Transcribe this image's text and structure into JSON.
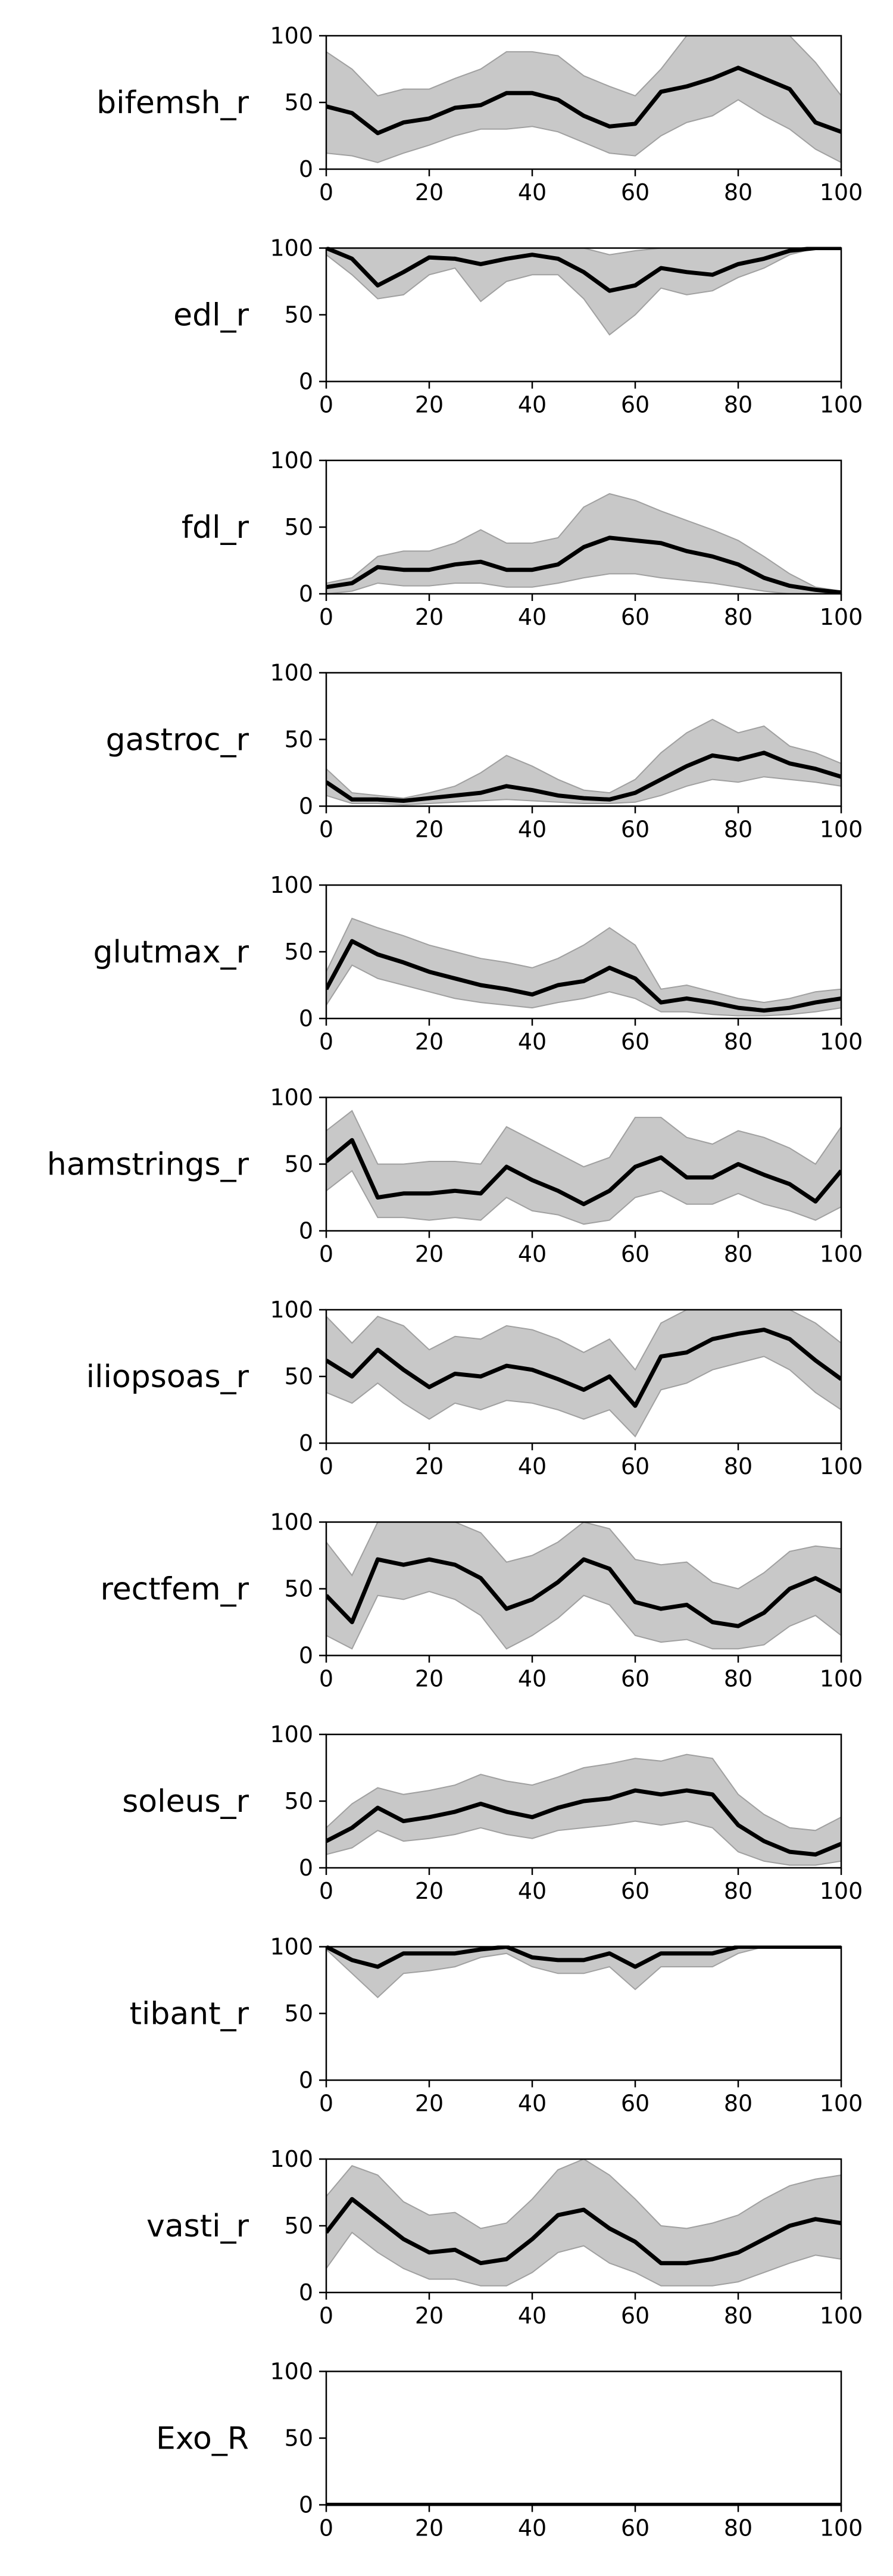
{
  "figure": {
    "x_ticks": [
      0,
      20,
      40,
      60,
      80,
      100
    ],
    "y_ticks": [
      0,
      50,
      100
    ]
  },
  "style": {
    "line_color": "#000000",
    "band_color": "#c8c8c8",
    "band_edge_color": "#a0a0a0",
    "axes_color": "#000000"
  },
  "chart_data": [
    {
      "type": "line",
      "label": "bifemsh_r",
      "xlim": [
        0,
        100
      ],
      "ylim": [
        0,
        100
      ],
      "x": [
        0,
        5,
        10,
        15,
        20,
        25,
        30,
        35,
        40,
        45,
        50,
        55,
        60,
        65,
        70,
        75,
        80,
        85,
        90,
        95,
        100
      ],
      "series": [
        {
          "values": [
            47,
            42,
            27,
            35,
            38,
            46,
            48,
            57,
            57,
            52,
            40,
            32,
            34,
            58,
            62,
            68,
            76,
            68,
            60,
            35,
            28
          ]
        },
        {
          "values": [
            88,
            75,
            55,
            60,
            60,
            68,
            75,
            88,
            88,
            85,
            70,
            62,
            55,
            75,
            100,
            100,
            100,
            100,
            100,
            80,
            55
          ]
        },
        {
          "values": [
            12,
            10,
            5,
            12,
            18,
            25,
            30,
            30,
            32,
            28,
            20,
            12,
            10,
            25,
            35,
            40,
            52,
            40,
            30,
            15,
            5
          ]
        }
      ]
    },
    {
      "type": "line",
      "label": "edl_r",
      "xlim": [
        0,
        100
      ],
      "ylim": [
        0,
        100
      ],
      "x": [
        0,
        5,
        10,
        15,
        20,
        25,
        30,
        35,
        40,
        45,
        50,
        55,
        60,
        65,
        70,
        75,
        80,
        85,
        90,
        95,
        100
      ],
      "series": [
        {
          "values": [
            100,
            92,
            72,
            82,
            93,
            92,
            88,
            92,
            95,
            92,
            82,
            68,
            72,
            85,
            82,
            80,
            88,
            92,
            98,
            100,
            100
          ]
        },
        {
          "values": [
            100,
            100,
            100,
            100,
            100,
            100,
            100,
            100,
            100,
            100,
            100,
            95,
            98,
            100,
            100,
            100,
            100,
            100,
            100,
            100,
            100
          ]
        },
        {
          "values": [
            95,
            80,
            62,
            65,
            80,
            85,
            60,
            75,
            80,
            80,
            62,
            35,
            50,
            70,
            65,
            68,
            78,
            85,
            95,
            100,
            100
          ]
        }
      ]
    },
    {
      "type": "line",
      "label": "fdl_r",
      "xlim": [
        0,
        100
      ],
      "ylim": [
        0,
        100
      ],
      "x": [
        0,
        5,
        10,
        15,
        20,
        25,
        30,
        35,
        40,
        45,
        50,
        55,
        60,
        65,
        70,
        75,
        80,
        85,
        90,
        95,
        100
      ],
      "series": [
        {
          "values": [
            5,
            8,
            20,
            18,
            18,
            22,
            24,
            18,
            18,
            22,
            35,
            42,
            40,
            38,
            32,
            28,
            22,
            12,
            6,
            3,
            1
          ]
        },
        {
          "values": [
            8,
            12,
            28,
            32,
            32,
            38,
            48,
            38,
            38,
            42,
            65,
            75,
            70,
            62,
            55,
            48,
            40,
            28,
            15,
            5,
            2
          ]
        },
        {
          "values": [
            0,
            2,
            8,
            6,
            6,
            8,
            8,
            5,
            5,
            8,
            12,
            15,
            15,
            12,
            10,
            8,
            5,
            2,
            0,
            0,
            0
          ]
        }
      ]
    },
    {
      "type": "line",
      "label": "gastroc_r",
      "xlim": [
        0,
        100
      ],
      "ylim": [
        0,
        100
      ],
      "x": [
        0,
        5,
        10,
        15,
        20,
        25,
        30,
        35,
        40,
        45,
        50,
        55,
        60,
        65,
        70,
        75,
        80,
        85,
        90,
        95,
        100
      ],
      "series": [
        {
          "values": [
            18,
            5,
            5,
            4,
            6,
            8,
            10,
            15,
            12,
            8,
            6,
            5,
            10,
            20,
            30,
            38,
            35,
            40,
            32,
            28,
            22
          ]
        },
        {
          "values": [
            28,
            10,
            8,
            6,
            10,
            15,
            25,
            38,
            30,
            20,
            12,
            10,
            20,
            40,
            55,
            65,
            55,
            60,
            45,
            40,
            32
          ]
        },
        {
          "values": [
            8,
            2,
            2,
            1,
            2,
            3,
            4,
            5,
            4,
            3,
            2,
            2,
            3,
            8,
            15,
            20,
            18,
            22,
            20,
            18,
            15
          ]
        }
      ]
    },
    {
      "type": "line",
      "label": "glutmax_r",
      "xlim": [
        0,
        100
      ],
      "ylim": [
        0,
        100
      ],
      "x": [
        0,
        5,
        10,
        15,
        20,
        25,
        30,
        35,
        40,
        45,
        50,
        55,
        60,
        65,
        70,
        75,
        80,
        85,
        90,
        95,
        100
      ],
      "series": [
        {
          "values": [
            22,
            58,
            48,
            42,
            35,
            30,
            25,
            22,
            18,
            25,
            28,
            38,
            30,
            12,
            15,
            12,
            8,
            6,
            8,
            12,
            15
          ]
        },
        {
          "values": [
            35,
            75,
            68,
            62,
            55,
            50,
            45,
            42,
            38,
            45,
            55,
            68,
            55,
            22,
            25,
            20,
            15,
            12,
            15,
            20,
            22
          ]
        },
        {
          "values": [
            10,
            40,
            30,
            25,
            20,
            15,
            12,
            10,
            8,
            12,
            15,
            20,
            15,
            5,
            5,
            3,
            2,
            2,
            3,
            5,
            8
          ]
        }
      ]
    },
    {
      "type": "line",
      "label": "hamstrings_r",
      "xlim": [
        0,
        100
      ],
      "ylim": [
        0,
        100
      ],
      "x": [
        0,
        5,
        10,
        15,
        20,
        25,
        30,
        35,
        40,
        45,
        50,
        55,
        60,
        65,
        70,
        75,
        80,
        85,
        90,
        95,
        100
      ],
      "series": [
        {
          "values": [
            52,
            68,
            25,
            28,
            28,
            30,
            28,
            48,
            38,
            30,
            20,
            30,
            48,
            55,
            40,
            40,
            50,
            42,
            35,
            22,
            45
          ]
        },
        {
          "values": [
            75,
            90,
            50,
            50,
            52,
            52,
            50,
            78,
            68,
            58,
            48,
            55,
            85,
            85,
            70,
            65,
            75,
            70,
            62,
            50,
            78
          ]
        },
        {
          "values": [
            30,
            45,
            10,
            10,
            8,
            10,
            8,
            25,
            15,
            12,
            5,
            8,
            25,
            30,
            20,
            20,
            28,
            20,
            15,
            8,
            18
          ]
        }
      ]
    },
    {
      "type": "line",
      "label": "iliopsoas_r",
      "xlim": [
        0,
        100
      ],
      "ylim": [
        0,
        100
      ],
      "x": [
        0,
        5,
        10,
        15,
        20,
        25,
        30,
        35,
        40,
        45,
        50,
        55,
        60,
        65,
        70,
        75,
        80,
        85,
        90,
        95,
        100
      ],
      "series": [
        {
          "values": [
            62,
            50,
            70,
            55,
            42,
            52,
            50,
            58,
            55,
            48,
            40,
            50,
            28,
            65,
            68,
            78,
            82,
            85,
            78,
            62,
            48
          ]
        },
        {
          "values": [
            95,
            75,
            95,
            88,
            70,
            80,
            78,
            88,
            85,
            78,
            68,
            78,
            55,
            90,
            100,
            100,
            100,
            100,
            100,
            90,
            75
          ]
        },
        {
          "values": [
            38,
            30,
            45,
            30,
            18,
            30,
            25,
            32,
            30,
            25,
            18,
            25,
            5,
            40,
            45,
            55,
            60,
            65,
            55,
            38,
            25
          ]
        }
      ]
    },
    {
      "type": "line",
      "label": "rectfem_r",
      "xlim": [
        0,
        100
      ],
      "ylim": [
        0,
        100
      ],
      "x": [
        0,
        5,
        10,
        15,
        20,
        25,
        30,
        35,
        40,
        45,
        50,
        55,
        60,
        65,
        70,
        75,
        80,
        85,
        90,
        95,
        100
      ],
      "series": [
        {
          "values": [
            45,
            25,
            72,
            68,
            72,
            68,
            58,
            35,
            42,
            55,
            72,
            65,
            40,
            35,
            38,
            25,
            22,
            32,
            50,
            58,
            48
          ]
        },
        {
          "values": [
            85,
            60,
            100,
            100,
            100,
            100,
            92,
            70,
            75,
            85,
            100,
            95,
            72,
            68,
            70,
            55,
            50,
            62,
            78,
            82,
            80
          ]
        },
        {
          "values": [
            15,
            5,
            45,
            42,
            48,
            42,
            30,
            5,
            15,
            28,
            45,
            38,
            15,
            10,
            12,
            5,
            5,
            8,
            22,
            30,
            15
          ]
        }
      ]
    },
    {
      "type": "line",
      "label": "soleus_r",
      "xlim": [
        0,
        100
      ],
      "ylim": [
        0,
        100
      ],
      "x": [
        0,
        5,
        10,
        15,
        20,
        25,
        30,
        35,
        40,
        45,
        50,
        55,
        60,
        65,
        70,
        75,
        80,
        85,
        90,
        95,
        100
      ],
      "series": [
        {
          "values": [
            20,
            30,
            45,
            35,
            38,
            42,
            48,
            42,
            38,
            45,
            50,
            52,
            58,
            55,
            58,
            55,
            32,
            20,
            12,
            10,
            18
          ]
        },
        {
          "values": [
            30,
            48,
            60,
            55,
            58,
            62,
            70,
            65,
            62,
            68,
            75,
            78,
            82,
            80,
            85,
            82,
            55,
            40,
            30,
            28,
            38
          ]
        },
        {
          "values": [
            10,
            15,
            28,
            20,
            22,
            25,
            30,
            25,
            22,
            28,
            30,
            32,
            35,
            32,
            35,
            30,
            12,
            5,
            2,
            2,
            5
          ]
        }
      ]
    },
    {
      "type": "line",
      "label": "tibant_r",
      "xlim": [
        0,
        100
      ],
      "ylim": [
        0,
        100
      ],
      "x": [
        0,
        5,
        10,
        15,
        20,
        25,
        30,
        35,
        40,
        45,
        50,
        55,
        60,
        65,
        70,
        75,
        80,
        85,
        90,
        95,
        100
      ],
      "series": [
        {
          "values": [
            100,
            90,
            85,
            95,
            95,
            95,
            98,
            100,
            92,
            90,
            90,
            95,
            85,
            95,
            95,
            95,
            100,
            100,
            100,
            100,
            100
          ]
        },
        {
          "values": [
            100,
            100,
            100,
            100,
            100,
            100,
            100,
            100,
            100,
            100,
            100,
            100,
            100,
            100,
            100,
            100,
            100,
            100,
            100,
            100,
            100
          ]
        },
        {
          "values": [
            98,
            80,
            62,
            80,
            82,
            85,
            92,
            95,
            85,
            80,
            80,
            85,
            68,
            85,
            85,
            85,
            95,
            100,
            100,
            100,
            100
          ]
        }
      ]
    },
    {
      "type": "line",
      "label": "vasti_r",
      "xlim": [
        0,
        100
      ],
      "ylim": [
        0,
        100
      ],
      "x": [
        0,
        5,
        10,
        15,
        20,
        25,
        30,
        35,
        40,
        45,
        50,
        55,
        60,
        65,
        70,
        75,
        80,
        85,
        90,
        95,
        100
      ],
      "series": [
        {
          "values": [
            45,
            70,
            55,
            40,
            30,
            32,
            22,
            25,
            40,
            58,
            62,
            48,
            38,
            22,
            22,
            25,
            30,
            40,
            50,
            55,
            52
          ]
        },
        {
          "values": [
            72,
            95,
            88,
            68,
            58,
            60,
            48,
            52,
            70,
            92,
            100,
            88,
            70,
            50,
            48,
            52,
            58,
            70,
            80,
            85,
            88
          ]
        },
        {
          "values": [
            18,
            45,
            30,
            18,
            10,
            10,
            5,
            5,
            15,
            30,
            35,
            22,
            15,
            5,
            5,
            5,
            8,
            15,
            22,
            28,
            25
          ]
        }
      ]
    },
    {
      "type": "line",
      "label": "Exo_R",
      "xlim": [
        0,
        100
      ],
      "ylim": [
        0,
        100
      ],
      "x": [
        0,
        5,
        10,
        15,
        20,
        25,
        30,
        35,
        40,
        45,
        50,
        55,
        60,
        65,
        70,
        75,
        80,
        85,
        90,
        95,
        100
      ],
      "series": [
        {
          "values": [
            0,
            0,
            0,
            0,
            0,
            0,
            0,
            0,
            0,
            0,
            0,
            0,
            0,
            0,
            0,
            0,
            0,
            0,
            0,
            0,
            0
          ]
        },
        {
          "values": [
            0,
            0,
            0,
            0,
            0,
            0,
            0,
            0,
            0,
            0,
            0,
            0,
            0,
            0,
            0,
            0,
            0,
            0,
            0,
            0,
            0
          ]
        },
        {
          "values": [
            0,
            0,
            0,
            0,
            0,
            0,
            0,
            0,
            0,
            0,
            0,
            0,
            0,
            0,
            0,
            0,
            0,
            0,
            0,
            0,
            0
          ]
        }
      ]
    }
  ]
}
